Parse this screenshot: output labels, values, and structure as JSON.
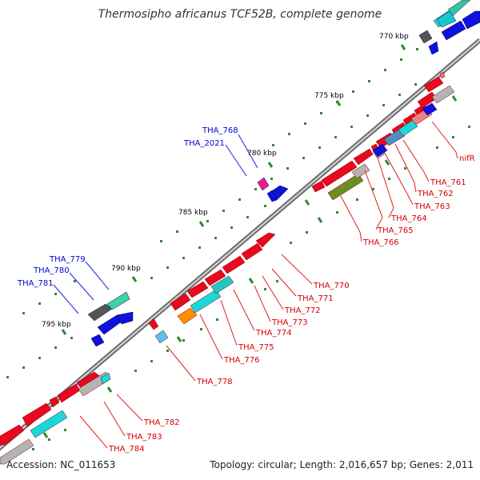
{
  "title": "Thermosipho africanus TCF52B, complete genome",
  "footer": {
    "accession": "Accession: NC_011653",
    "topology": "Topology: circular; Length: 2,016,657 bp; Genes: 2,011"
  },
  "colors": {
    "backbone": "#7a7a7a",
    "forward_gene": "#e8091e",
    "reverse_gene": "#1111dd",
    "cyan": "#18d8d8",
    "teal": "#3cc8b0",
    "gray": "#b4b4b4",
    "darkgray": "#555555",
    "olive": "#6b8e23",
    "orange": "#ff8c00",
    "pink": "#ff3399",
    "tick": "#2e8b2e",
    "forward_label": "#d40000",
    "reverse_label": "#0000cc"
  },
  "scale_labels": [
    "770 kbp",
    "775 kbp",
    "780 kbp",
    "785 kbp",
    "790 kbp",
    "795 kbp"
  ],
  "forward_labels": [
    "nifR",
    "THA_761",
    "THA_762",
    "THA_763",
    "THA_764",
    "THA_765",
    "THA_766",
    "THA_770",
    "THA_771",
    "THA_772",
    "THA_773",
    "THA_774",
    "THA_775",
    "THA_776",
    "THA_778",
    "THA_782",
    "THA_783",
    "THA_784"
  ],
  "reverse_labels": [
    "THA_768",
    "THA_2021",
    "THA_779",
    "THA_780",
    "THA_781"
  ]
}
